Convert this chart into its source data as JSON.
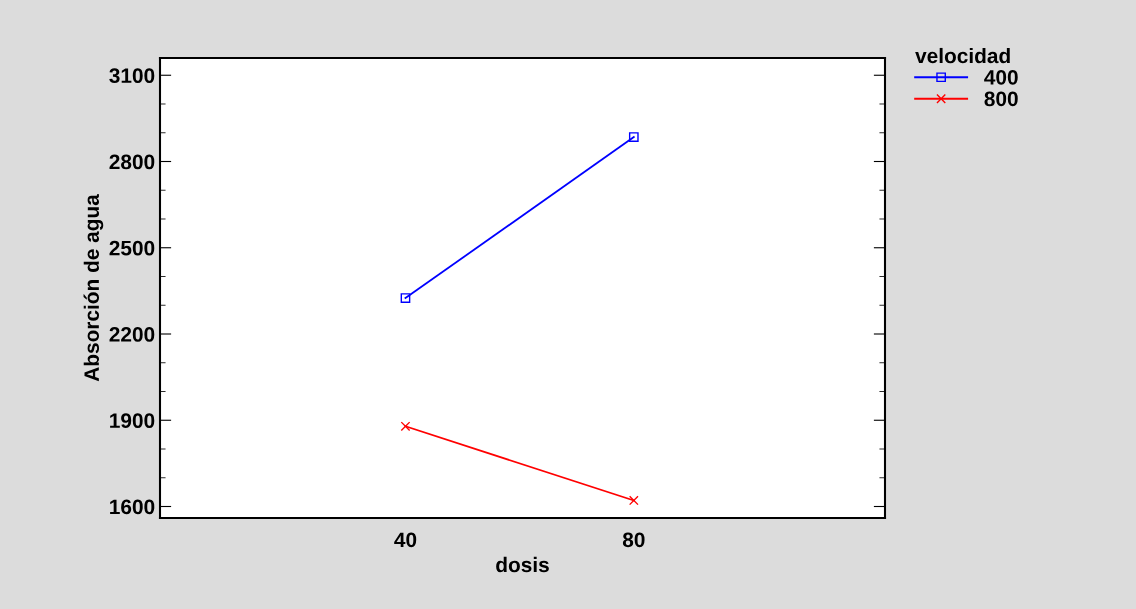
{
  "chart_data": {
    "type": "line",
    "xlabel": "dosis",
    "ylabel": "Absorción de agua",
    "legend_title": "velocidad",
    "legend": "top right",
    "x": [
      40,
      80
    ],
    "xlim": [
      -3,
      124
    ],
    "xticks": [
      40,
      80
    ],
    "ylim": [
      1560,
      3160
    ],
    "yticks": [
      1600,
      1900,
      2200,
      2500,
      2800,
      3100
    ],
    "grid": false,
    "series": [
      {
        "name": "400",
        "color": "#0000ff",
        "marker": "square",
        "values": [
          2325,
          2885
        ]
      },
      {
        "name": "800",
        "color": "#ff0000",
        "marker": "cross",
        "values": [
          1879,
          1621
        ]
      }
    ]
  }
}
